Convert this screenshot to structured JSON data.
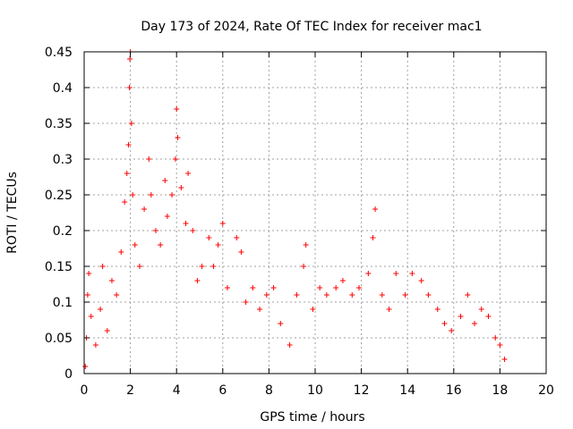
{
  "chart_data": {
    "type": "scatter",
    "title": "Day 173 of 2024, Rate Of TEC Index for receiver mac1",
    "xlabel": "GPS time / hours",
    "ylabel": "ROTI / TECUs",
    "xlim": [
      0,
      20
    ],
    "ylim": [
      0,
      0.45
    ],
    "x_ticks": [
      "0",
      "2",
      "4",
      "6",
      "8",
      "10",
      "12",
      "14",
      "16",
      "18",
      "20"
    ],
    "y_ticks": [
      "0",
      "0.05",
      "0.1",
      "0.15",
      "0.2",
      "0.25",
      "0.3",
      "0.35",
      "0.4",
      "0.45"
    ],
    "grid": true,
    "marker": "+",
    "color": "#ff0000",
    "series": [
      {
        "name": "ROTI",
        "points": [
          [
            0.05,
            0.01
          ],
          [
            0.1,
            0.05
          ],
          [
            0.15,
            0.11
          ],
          [
            0.2,
            0.14
          ],
          [
            0.3,
            0.08
          ],
          [
            0.5,
            0.04
          ],
          [
            0.7,
            0.09
          ],
          [
            0.8,
            0.15
          ],
          [
            1.0,
            0.06
          ],
          [
            1.2,
            0.13
          ],
          [
            1.4,
            0.11
          ],
          [
            1.6,
            0.17
          ],
          [
            1.75,
            0.24
          ],
          [
            1.85,
            0.28
          ],
          [
            1.92,
            0.32
          ],
          [
            1.96,
            0.4
          ],
          [
            1.98,
            0.44
          ],
          [
            2.0,
            0.45
          ],
          [
            2.05,
            0.35
          ],
          [
            2.1,
            0.25
          ],
          [
            2.2,
            0.18
          ],
          [
            2.4,
            0.15
          ],
          [
            2.6,
            0.23
          ],
          [
            2.8,
            0.3
          ],
          [
            2.9,
            0.25
          ],
          [
            3.1,
            0.2
          ],
          [
            3.3,
            0.18
          ],
          [
            3.5,
            0.27
          ],
          [
            3.6,
            0.22
          ],
          [
            3.8,
            0.25
          ],
          [
            3.95,
            0.3
          ],
          [
            4.0,
            0.37
          ],
          [
            4.05,
            0.33
          ],
          [
            4.2,
            0.26
          ],
          [
            4.4,
            0.21
          ],
          [
            4.5,
            0.28
          ],
          [
            4.7,
            0.2
          ],
          [
            4.9,
            0.13
          ],
          [
            5.1,
            0.15
          ],
          [
            5.4,
            0.19
          ],
          [
            5.6,
            0.15
          ],
          [
            5.8,
            0.18
          ],
          [
            6.0,
            0.21
          ],
          [
            6.2,
            0.12
          ],
          [
            6.6,
            0.19
          ],
          [
            6.8,
            0.17
          ],
          [
            7.0,
            0.1
          ],
          [
            7.3,
            0.12
          ],
          [
            7.6,
            0.09
          ],
          [
            7.9,
            0.11
          ],
          [
            8.2,
            0.12
          ],
          [
            8.5,
            0.07
          ],
          [
            8.9,
            0.04
          ],
          [
            9.2,
            0.11
          ],
          [
            9.5,
            0.15
          ],
          [
            9.6,
            0.18
          ],
          [
            9.9,
            0.09
          ],
          [
            10.2,
            0.12
          ],
          [
            10.5,
            0.11
          ],
          [
            10.9,
            0.12
          ],
          [
            11.2,
            0.13
          ],
          [
            11.6,
            0.11
          ],
          [
            11.9,
            0.12
          ],
          [
            12.3,
            0.14
          ],
          [
            12.5,
            0.19
          ],
          [
            12.6,
            0.23
          ],
          [
            12.9,
            0.11
          ],
          [
            13.2,
            0.09
          ],
          [
            13.5,
            0.14
          ],
          [
            13.9,
            0.11
          ],
          [
            14.2,
            0.14
          ],
          [
            14.6,
            0.13
          ],
          [
            14.9,
            0.11
          ],
          [
            15.3,
            0.09
          ],
          [
            15.6,
            0.07
          ],
          [
            15.9,
            0.06
          ],
          [
            16.3,
            0.08
          ],
          [
            16.6,
            0.11
          ],
          [
            16.9,
            0.07
          ],
          [
            17.2,
            0.09
          ],
          [
            17.5,
            0.08
          ],
          [
            17.8,
            0.05
          ],
          [
            18.0,
            0.04
          ],
          [
            18.2,
            0.02
          ]
        ]
      }
    ]
  }
}
